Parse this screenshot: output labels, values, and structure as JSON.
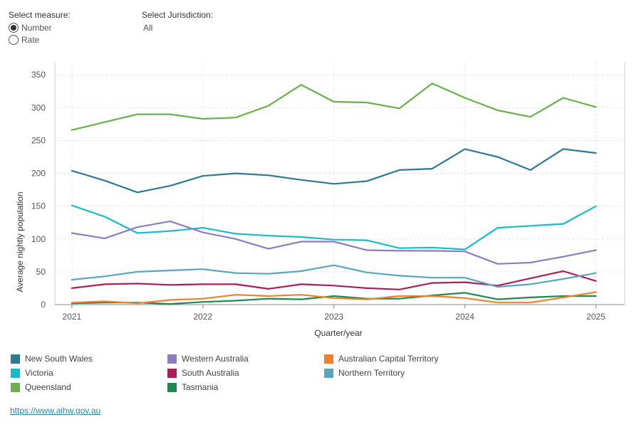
{
  "controls": {
    "measure_label": "Select measure:",
    "measure_options": [
      {
        "label": "Number",
        "selected": true
      },
      {
        "label": "Rate",
        "selected": false
      }
    ],
    "jurisdiction_label": "Select Jurisdiction:",
    "jurisdiction_value": "All"
  },
  "chart_data": {
    "type": "line",
    "xlabel": "Quarter/year",
    "ylabel": "Average nightly population",
    "ylim": [
      0,
      360
    ],
    "yticks": [
      0,
      50,
      100,
      150,
      200,
      250,
      300,
      350
    ],
    "x": [
      2021,
      2021.25,
      2021.5,
      2021.75,
      2022,
      2022.25,
      2022.5,
      2022.75,
      2023,
      2023.25,
      2023.5,
      2023.75,
      2024,
      2024.25,
      2024.5,
      2024.75,
      2025
    ],
    "xticks": [
      "2021",
      "2022",
      "2023",
      "2024",
      "2025"
    ],
    "xtick_values": [
      2021,
      2022,
      2023,
      2024,
      2025
    ],
    "grid": true,
    "legend_position": "bottom",
    "series": [
      {
        "name": "New South Wales",
        "color": "#2e7a93",
        "values": [
          204,
          189,
          171,
          181,
          196,
          200,
          197,
          190,
          184,
          188,
          205,
          207,
          237,
          225,
          205,
          237,
          231
        ]
      },
      {
        "name": "Victoria",
        "color": "#17bcc7",
        "values": [
          151,
          134,
          109,
          112,
          117,
          108,
          105,
          103,
          99,
          98,
          86,
          87,
          84,
          117,
          120,
          123,
          150
        ]
      },
      {
        "name": "Queensland",
        "color": "#6ab04c",
        "values": [
          266,
          278,
          290,
          290,
          283,
          285,
          303,
          335,
          309,
          308,
          299,
          337,
          315,
          296,
          286,
          315,
          301
        ]
      },
      {
        "name": "Western Australia",
        "color": "#8e7cc3",
        "values": [
          109,
          101,
          118,
          127,
          110,
          100,
          85,
          96,
          96,
          83,
          82,
          82,
          81,
          62,
          64,
          73,
          83
        ]
      },
      {
        "name": "South Australia",
        "color": "#ab1e5b",
        "values": [
          25,
          31,
          32,
          30,
          31,
          31,
          24,
          31,
          29,
          25,
          23,
          33,
          34,
          29,
          40,
          51,
          36
        ]
      },
      {
        "name": "Tasmania",
        "color": "#1d8a4e",
        "values": [
          2,
          3,
          3,
          1,
          4,
          6,
          9,
          8,
          13,
          9,
          9,
          14,
          18,
          8,
          11,
          13,
          13
        ]
      },
      {
        "name": "Australian Capital Territory",
        "color": "#f08030",
        "values": [
          3,
          5,
          2,
          7,
          9,
          15,
          13,
          15,
          10,
          8,
          13,
          13,
          10,
          3,
          3,
          11,
          19
        ]
      },
      {
        "name": "Northern Territory",
        "color": "#5aa5c0",
        "values": [
          38,
          43,
          50,
          52,
          54,
          48,
          47,
          51,
          60,
          49,
          44,
          41,
          41,
          27,
          31,
          39,
          48
        ]
      }
    ]
  },
  "legend": [
    {
      "name": "New South Wales",
      "color": "#2e7a93"
    },
    {
      "name": "Victoria",
      "color": "#17bcc7"
    },
    {
      "name": "Queensland",
      "color": "#6ab04c"
    },
    {
      "name": "Western Australia",
      "color": "#8e7cc3"
    },
    {
      "name": "South Australia",
      "color": "#ab1e5b"
    },
    {
      "name": "Tasmania",
      "color": "#1d8a4e"
    },
    {
      "name": "Australian Capital Territory",
      "color": "#f08030"
    },
    {
      "name": "Northern Territory",
      "color": "#5aa5c0"
    }
  ],
  "footer": {
    "link_text": "https://www.aihw.gov.au"
  }
}
